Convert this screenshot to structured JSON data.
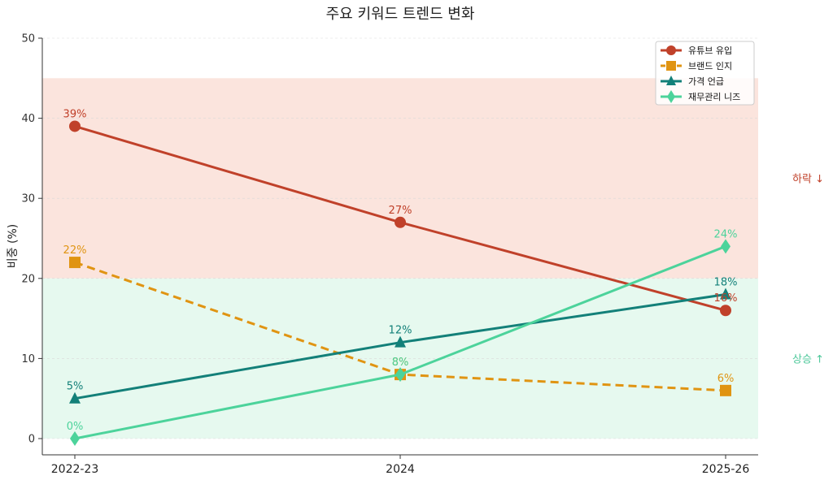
{
  "chart_data": {
    "type": "line",
    "title": "주요 키워드 트렌드 변화",
    "xlabel": "",
    "ylabel": "비중 (%)",
    "categories": [
      "2022-23",
      "2024",
      "2025-26"
    ],
    "ylim": [
      0,
      50
    ],
    "yticks": [
      0,
      10,
      20,
      30,
      40,
      50
    ],
    "grid": true,
    "legend_position": "top-right",
    "series": [
      {
        "name": "유튜브 유입",
        "values": [
          39,
          27,
          16
        ],
        "labels": [
          "39%",
          "27%",
          "16%"
        ],
        "color": "#c0412a",
        "marker": "circle",
        "dash": "solid"
      },
      {
        "name": "브랜드 인지",
        "values": [
          22,
          8,
          6
        ],
        "labels": [
          "22%",
          "8%",
          "6%"
        ],
        "color": "#e09412",
        "marker": "square",
        "dash": "dashed"
      },
      {
        "name": "가격 언급",
        "values": [
          5,
          12,
          18
        ],
        "labels": [
          "5%",
          "12%",
          "18%"
        ],
        "color": "#138079",
        "marker": "triangle",
        "dash": "solid"
      },
      {
        "name": "재무관리 니즈",
        "values": [
          0,
          8,
          24
        ],
        "labels": [
          "0%",
          "8%",
          "24%"
        ],
        "color": "#4cd39b",
        "marker": "diamond",
        "dash": "solid"
      }
    ],
    "bands": [
      {
        "from": 20,
        "to": 45,
        "color": "#fbe4dd",
        "label": "하락 ↓",
        "label_color": "#c0412a"
      },
      {
        "from": 0,
        "to": 20,
        "color": "#e6f9ef",
        "label": "상승 ↑",
        "label_color": "#4cc89a"
      }
    ]
  }
}
